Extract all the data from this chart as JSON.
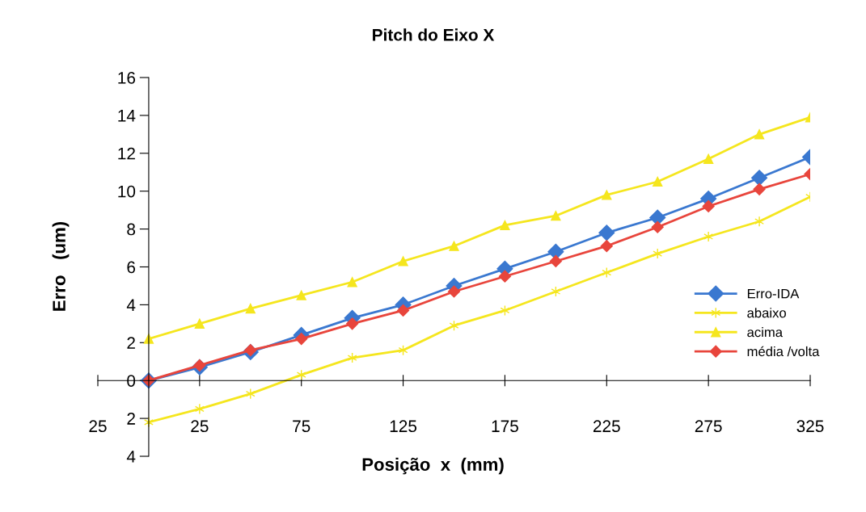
{
  "chart_data": {
    "type": "line",
    "title": "Pitch do Eixo X",
    "xlabel": "Posição  x  (mm)",
    "ylabel": "Erro   (um)",
    "x": [
      0,
      25,
      50,
      75,
      100,
      125,
      150,
      175,
      200,
      225,
      250,
      275,
      300,
      325
    ],
    "series": [
      {
        "name": "Erro-IDA",
        "color": "#3a78d0",
        "marker": "diamond",
        "values": [
          0,
          0.7,
          1.5,
          2.4,
          3.3,
          4.0,
          5.0,
          5.9,
          6.8,
          7.8,
          8.6,
          9.6,
          10.7,
          11.8
        ]
      },
      {
        "name": "abaixo",
        "color": "#f5e61e",
        "marker": "cross",
        "values": [
          -2.2,
          -1.5,
          -0.7,
          0.3,
          1.2,
          1.6,
          2.9,
          3.7,
          4.7,
          5.7,
          6.7,
          7.6,
          8.4,
          9.7
        ]
      },
      {
        "name": "acima",
        "color": "#f5e61e",
        "marker": "triangle",
        "values": [
          2.2,
          3.0,
          3.8,
          4.5,
          5.2,
          6.3,
          7.1,
          8.2,
          8.7,
          9.8,
          10.5,
          11.7,
          13.0,
          13.9
        ]
      },
      {
        "name": "média /volta",
        "color": "#e8453c",
        "marker": "diamond",
        "values": [
          0,
          0.8,
          1.6,
          2.2,
          3.0,
          3.7,
          4.7,
          5.5,
          6.3,
          7.1,
          8.1,
          9.2,
          10.1,
          10.9
        ]
      }
    ],
    "xlim": [
      -25,
      325
    ],
    "xticks": [
      {
        "value": -25,
        "label": "25"
      },
      25,
      75,
      125,
      175,
      225,
      275,
      325
    ],
    "ylim": [
      -4,
      16
    ],
    "yticks": [
      {
        "value": -4,
        "label": "4"
      },
      {
        "value": -2,
        "label": "2"
      },
      0,
      2,
      4,
      6,
      8,
      10,
      12,
      14,
      16
    ],
    "grid": false,
    "legend": "right",
    "line_style": "solid"
  }
}
